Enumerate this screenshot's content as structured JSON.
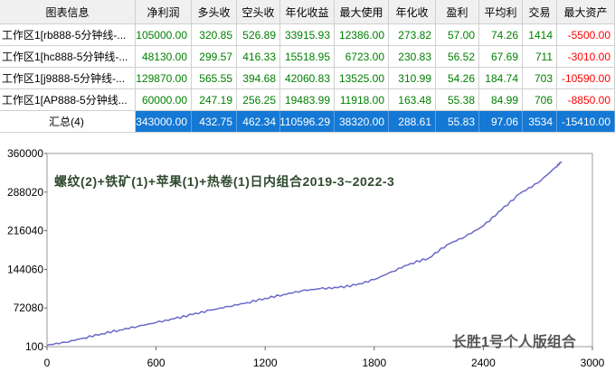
{
  "table": {
    "headers": [
      "图表信息",
      "净利润",
      "多头收",
      "空头收",
      "年化收益",
      "最大使用",
      "年化收",
      "盈利",
      "平均利",
      "交易",
      "最大资产"
    ],
    "rows": [
      {
        "name": "工作区1[rb888-5分钟线-...",
        "values": [
          "105000.00",
          "320.85",
          "526.89",
          "33915.93",
          "12386.00",
          "273.82",
          "57.00",
          "74.26",
          "1414",
          "-5500.00"
        ]
      },
      {
        "name": "工作区1[hc888-5分钟线-...",
        "values": [
          "48130.00",
          "299.57",
          "416.33",
          "15518.95",
          "6723.00",
          "230.83",
          "56.52",
          "67.69",
          "711",
          "-3010.00"
        ]
      },
      {
        "name": "工作区1[j9888-5分钟线-...",
        "values": [
          "129870.00",
          "565.55",
          "394.68",
          "42060.83",
          "13525.00",
          "310.99",
          "54.26",
          "184.74",
          "703",
          "-10590.00"
        ]
      },
      {
        "name": "工作区1[AP888-5分钟线...",
        "values": [
          "60000.00",
          "247.19",
          "256.25",
          "19483.99",
          "11918.00",
          "163.48",
          "55.38",
          "84.99",
          "706",
          "-8850.00"
        ]
      }
    ],
    "total": {
      "name": "汇总(4)",
      "values": [
        "343000.00",
        "432.75",
        "462.34",
        "110596.29",
        "38320.00",
        "288.61",
        "55.83",
        "97.06",
        "3534",
        "-15410.00"
      ]
    }
  },
  "chart_data": {
    "type": "line",
    "title": "螺纹(2)+铁矿(1)+苹果(1)+热卷(1)日内组合2019-3~2022-3",
    "watermark": "长胜1号个人版组合",
    "xlim": [
      0,
      3000
    ],
    "ylim": [
      100,
      360000
    ],
    "x_ticks": [
      "0",
      "600",
      "1200",
      "1800",
      "2400",
      "3000"
    ],
    "y_ticks": [
      "100",
      "72080",
      "144060",
      "216040",
      "288020",
      "360000"
    ],
    "series": [
      {
        "name": "",
        "color": "#6a6ac8",
        "x": [
          0,
          100,
          200,
          300,
          400,
          500,
          600,
          700,
          800,
          900,
          1000,
          1100,
          1200,
          1300,
          1400,
          1500,
          1600,
          1700,
          1800,
          1900,
          2000,
          2100,
          2200,
          2300,
          2400,
          2500,
          2600,
          2700,
          2800,
          2830
        ],
        "y": [
          3000,
          8000,
          16000,
          24000,
          31000,
          38000,
          45000,
          52000,
          60000,
          68000,
          75000,
          82000,
          90000,
          97000,
          104000,
          108000,
          110000,
          115000,
          125000,
          140000,
          155000,
          165000,
          190000,
          205000,
          225000,
          255000,
          285000,
          305000,
          335000,
          345000
        ]
      }
    ]
  }
}
